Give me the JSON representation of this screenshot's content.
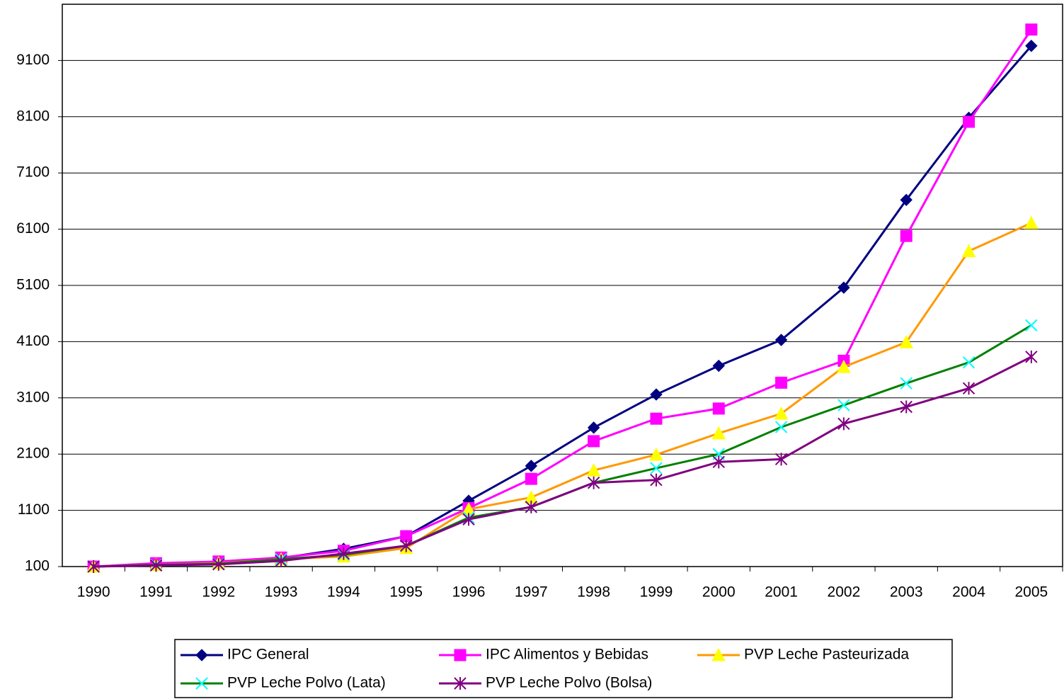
{
  "chart_data": {
    "type": "line",
    "categories": [
      "1990",
      "1991",
      "1992",
      "1993",
      "1994",
      "1995",
      "1996",
      "1997",
      "1998",
      "1999",
      "2000",
      "2001",
      "2002",
      "2003",
      "2004",
      "2005"
    ],
    "series": [
      {
        "name": "IPC General",
        "color": "#000080",
        "marker": "diamond",
        "marker_color": "#000080",
        "values": [
          100,
          140,
          170,
          250,
          415,
          640,
          1270,
          1890,
          2570,
          3160,
          3670,
          4130,
          5060,
          6620,
          8080,
          9360
        ]
      },
      {
        "name": "IPC Alimentos y Bebidas",
        "color": "#ff00ff",
        "marker": "square",
        "marker_color": "#ff00ff",
        "values": [
          100,
          160,
          190,
          260,
          380,
          640,
          1140,
          1660,
          2330,
          2730,
          2910,
          3370,
          3760,
          5980,
          8010,
          9650
        ]
      },
      {
        "name": "PVP Leche Pasteurizada",
        "color": "#ff9900",
        "marker": "triangle",
        "marker_color": "#ffff00",
        "values": [
          100,
          130,
          160,
          230,
          280,
          430,
          1120,
          1330,
          1810,
          2090,
          2470,
          2820,
          3650,
          4090,
          5710,
          6210
        ]
      },
      {
        "name": "PVP Leche Polvo (Lata)",
        "color": "#008000",
        "marker": "x",
        "marker_color": "#00ffff",
        "values": [
          100,
          130,
          150,
          230,
          310,
          470,
          970,
          1160,
          1590,
          1850,
          2100,
          2580,
          2970,
          3360,
          3730,
          4390
        ]
      },
      {
        "name": "PVP Leche Polvo (Bolsa)",
        "color": "#800080",
        "marker": "asterisk",
        "marker_color": "#800080",
        "values": [
          100,
          120,
          140,
          200,
          330,
          470,
          940,
          1160,
          1590,
          1640,
          1960,
          2010,
          2640,
          2940,
          3270,
          3830
        ]
      }
    ],
    "ylim": [
      100,
      10100
    ],
    "yticks": [
      100,
      1100,
      2100,
      3100,
      4100,
      5100,
      6100,
      7100,
      8100,
      9100
    ],
    "grid": true,
    "legend": "bottom"
  }
}
